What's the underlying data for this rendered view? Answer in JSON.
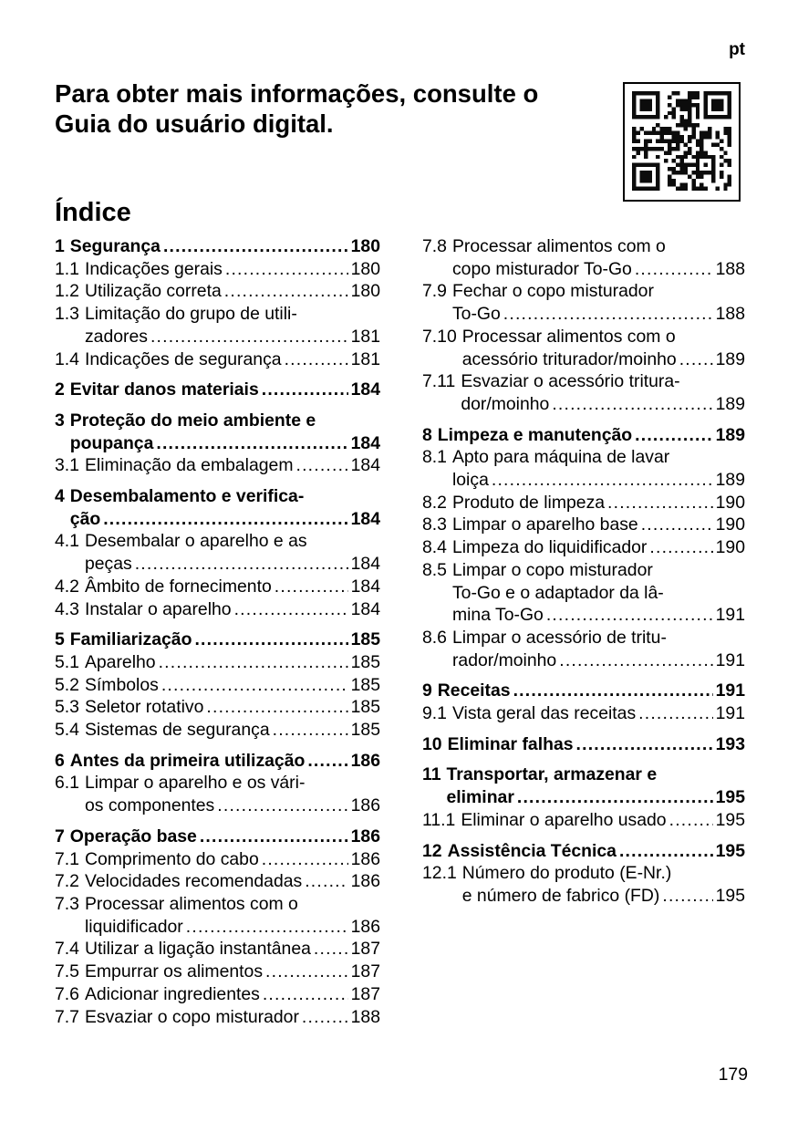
{
  "page": {
    "lang_code": "pt",
    "page_number": "179"
  },
  "header": {
    "title": "Para obter mais informações, consulte o\nGuia do usuário digital.",
    "qr_icon": "qr-code"
  },
  "toc": {
    "heading": "Índice",
    "columns": [
      {
        "entries": [
          {
            "num": "1",
            "bold": true,
            "lines": [
              "Segurança"
            ],
            "page": "180"
          },
          {
            "num": "1.1",
            "bold": false,
            "lines": [
              "Indicações gerais"
            ],
            "page": "180"
          },
          {
            "num": "1.2",
            "bold": false,
            "lines": [
              "Utilização correta"
            ],
            "page": "180"
          },
          {
            "num": "1.3",
            "bold": false,
            "lines": [
              "Limitação do grupo de utili-",
              "zadores"
            ],
            "page": "181"
          },
          {
            "num": "1.4",
            "bold": false,
            "lines": [
              "Indicações de segurança"
            ],
            "page": "181"
          },
          {
            "num": "2",
            "bold": true,
            "lines": [
              "Evitar danos materiais"
            ],
            "page": "184"
          },
          {
            "num": "3",
            "bold": true,
            "lines": [
              "Proteção do meio ambiente e",
              "poupança"
            ],
            "page": "184"
          },
          {
            "num": "3.1",
            "bold": false,
            "lines": [
              "Eliminação da embalagem"
            ],
            "page": "184"
          },
          {
            "num": "4",
            "bold": true,
            "lines": [
              "Desembalamento e verifica-",
              "ção"
            ],
            "page": "184"
          },
          {
            "num": "4.1",
            "bold": false,
            "lines": [
              "Desembalar o aparelho e as",
              "peças"
            ],
            "page": "184"
          },
          {
            "num": "4.2",
            "bold": false,
            "lines": [
              "Âmbito de fornecimento"
            ],
            "page": "184"
          },
          {
            "num": "4.3",
            "bold": false,
            "lines": [
              "Instalar o aparelho"
            ],
            "page": "184"
          },
          {
            "num": "5",
            "bold": true,
            "lines": [
              "Familiarização"
            ],
            "page": "185"
          },
          {
            "num": "5.1",
            "bold": false,
            "lines": [
              "Aparelho"
            ],
            "page": "185"
          },
          {
            "num": "5.2",
            "bold": false,
            "lines": [
              "Símbolos"
            ],
            "page": "185"
          },
          {
            "num": "5.3",
            "bold": false,
            "lines": [
              "Seletor rotativo"
            ],
            "page": "185"
          },
          {
            "num": "5.4",
            "bold": false,
            "lines": [
              "Sistemas de segurança"
            ],
            "page": "185"
          },
          {
            "num": "6",
            "bold": true,
            "lines": [
              "Antes da primeira utilização"
            ],
            "page": "186"
          },
          {
            "num": "6.1",
            "bold": false,
            "lines": [
              "Limpar o aparelho e os vári-",
              "os componentes"
            ],
            "page": "186"
          },
          {
            "num": "7",
            "bold": true,
            "lines": [
              "Operação base"
            ],
            "page": "186"
          },
          {
            "num": "7.1",
            "bold": false,
            "lines": [
              "Comprimento do cabo"
            ],
            "page": "186"
          },
          {
            "num": "7.2",
            "bold": false,
            "lines": [
              "Velocidades recomendadas"
            ],
            "page": "186"
          },
          {
            "num": "7.3",
            "bold": false,
            "lines": [
              "Processar alimentos com o",
              "liquidificador"
            ],
            "page": "186"
          },
          {
            "num": "7.4",
            "bold": false,
            "lines": [
              "Utilizar a ligação instantânea"
            ],
            "page": "187"
          },
          {
            "num": "7.5",
            "bold": false,
            "lines": [
              "Empurrar os alimentos"
            ],
            "page": "187"
          },
          {
            "num": "7.6",
            "bold": false,
            "lines": [
              "Adicionar ingredientes"
            ],
            "page": "187"
          },
          {
            "num": "7.7",
            "bold": false,
            "lines": [
              "Esvaziar o copo misturador"
            ],
            "page": "188"
          }
        ]
      },
      {
        "entries": [
          {
            "num": "7.8",
            "bold": false,
            "lines": [
              "Processar alimentos com o",
              "copo misturador To-Go"
            ],
            "page": "188"
          },
          {
            "num": "7.9",
            "bold": false,
            "lines": [
              "Fechar o copo misturador",
              "To-Go"
            ],
            "page": "188"
          },
          {
            "num": "7.10",
            "bold": false,
            "lines": [
              "Processar alimentos com o",
              "acessório triturador/moinho"
            ],
            "page": "189"
          },
          {
            "num": "7.11",
            "bold": false,
            "lines": [
              "Esvaziar o acessório tritura-",
              "dor/moinho"
            ],
            "page": "189"
          },
          {
            "num": "8",
            "bold": true,
            "lines": [
              "Limpeza e manutenção"
            ],
            "page": "189"
          },
          {
            "num": "8.1",
            "bold": false,
            "lines": [
              "Apto para máquina de lavar",
              "loiça"
            ],
            "page": "189"
          },
          {
            "num": "8.2",
            "bold": false,
            "lines": [
              "Produto de limpeza"
            ],
            "page": "190"
          },
          {
            "num": "8.3",
            "bold": false,
            "lines": [
              "Limpar o aparelho base"
            ],
            "page": "190"
          },
          {
            "num": "8.4",
            "bold": false,
            "lines": [
              "Limpeza do liquidificador"
            ],
            "page": "190"
          },
          {
            "num": "8.5",
            "bold": false,
            "lines": [
              "Limpar o copo misturador",
              "To-Go e o adaptador da lâ-",
              "mina To-Go"
            ],
            "page": "191"
          },
          {
            "num": "8.6",
            "bold": false,
            "lines": [
              "Limpar o acessório de tritu-",
              "rador/moinho"
            ],
            "page": "191"
          },
          {
            "num": "9",
            "bold": true,
            "lines": [
              "Receitas"
            ],
            "page": "191"
          },
          {
            "num": "9.1",
            "bold": false,
            "lines": [
              "Vista geral das receitas"
            ],
            "page": "191"
          },
          {
            "num": "10",
            "bold": true,
            "lines": [
              "Eliminar falhas"
            ],
            "page": "193"
          },
          {
            "num": "11",
            "bold": true,
            "lines": [
              "Transportar, armazenar e",
              "eliminar"
            ],
            "page": "195"
          },
          {
            "num": "11.1",
            "bold": false,
            "lines": [
              "Eliminar o aparelho usado"
            ],
            "page": "195"
          },
          {
            "num": "12",
            "bold": true,
            "lines": [
              "Assistência Técnica"
            ],
            "page": "195"
          },
          {
            "num": "12.1",
            "bold": false,
            "lines": [
              "Número do produto (E-Nr.)",
              "e número de fabrico (FD)"
            ],
            "page": "195"
          }
        ]
      }
    ]
  }
}
